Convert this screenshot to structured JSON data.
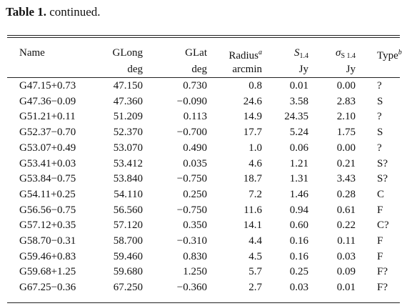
{
  "caption": {
    "label": "Table 1.",
    "text": "continued."
  },
  "table": {
    "columns": [
      {
        "label": "Name"
      },
      {
        "label": "GLong",
        "unit": "deg"
      },
      {
        "label": "GLat",
        "unit": "deg"
      },
      {
        "label": "Radius",
        "sup": "a",
        "unit": "arcmin"
      },
      {
        "label": "S",
        "sub": "1.4",
        "unit": "Jy"
      },
      {
        "label": "σ",
        "sub": "S 1.4",
        "unit": "Jy"
      },
      {
        "label": "Type",
        "sup": "b"
      }
    ],
    "rows": [
      [
        "G47.15+0.73",
        "47.150",
        "0.730",
        "0.8",
        "0.01",
        "0.00",
        "?"
      ],
      [
        "G47.36−0.09",
        "47.360",
        "−0.090",
        "24.6",
        "3.58",
        "2.83",
        "S"
      ],
      [
        "G51.21+0.11",
        "51.209",
        "0.113",
        "14.9",
        "24.35",
        "2.10",
        "?"
      ],
      [
        "G52.37−0.70",
        "52.370",
        "−0.700",
        "17.7",
        "5.24",
        "1.75",
        "S"
      ],
      [
        "G53.07+0.49",
        "53.070",
        "0.490",
        "1.0",
        "0.06",
        "0.00",
        "?"
      ],
      [
        "G53.41+0.03",
        "53.412",
        "0.035",
        "4.6",
        "1.21",
        "0.21",
        "S?"
      ],
      [
        "G53.84−0.75",
        "53.840",
        "−0.750",
        "18.7",
        "1.31",
        "3.43",
        "S?"
      ],
      [
        "G54.11+0.25",
        "54.110",
        "0.250",
        "7.2",
        "1.46",
        "0.28",
        "C"
      ],
      [
        "G56.56−0.75",
        "56.560",
        "−0.750",
        "11.6",
        "0.94",
        "0.61",
        "F"
      ],
      [
        "G57.12+0.35",
        "57.120",
        "0.350",
        "14.1",
        "0.60",
        "0.22",
        "C?"
      ],
      [
        "G58.70−0.31",
        "58.700",
        "−0.310",
        "4.4",
        "0.16",
        "0.11",
        "F"
      ],
      [
        "G59.46+0.83",
        "59.460",
        "0.830",
        "4.5",
        "0.16",
        "0.03",
        "F"
      ],
      [
        "G59.68+1.25",
        "59.680",
        "1.250",
        "5.7",
        "0.25",
        "0.09",
        "F?"
      ],
      [
        "G67.25−0.36",
        "67.250",
        "−0.360",
        "2.7",
        "0.03",
        "0.01",
        "F?"
      ]
    ]
  }
}
